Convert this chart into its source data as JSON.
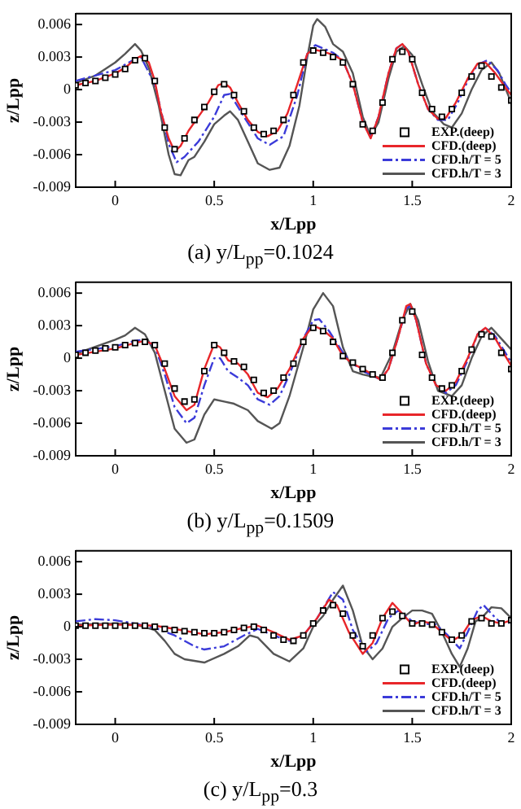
{
  "chart_data": [
    {
      "type": "line",
      "title": "(a) y/L$_{pp}$=0.1024",
      "xlabel": "x/Lpp",
      "ylabel": "z/Lpp",
      "xlim": [
        -0.2,
        2
      ],
      "ylim": [
        -0.009,
        0.007
      ],
      "xticks": [
        0,
        0.5,
        1,
        1.5,
        2
      ],
      "yticks": [
        -0.009,
        -0.006,
        -0.003,
        0,
        0.003,
        0.006
      ],
      "legend": "bottom right",
      "grid": false,
      "series": [
        {
          "name": "EXP.(deep)",
          "type": "scatter",
          "marker": "square",
          "color": "#000000",
          "x": [
            -0.2,
            -0.15,
            -0.1,
            -0.05,
            0,
            0.05,
            0.1,
            0.15,
            0.2,
            0.25,
            0.3,
            0.35,
            0.4,
            0.45,
            0.5,
            0.55,
            0.6,
            0.65,
            0.7,
            0.75,
            0.8,
            0.85,
            0.9,
            0.95,
            1.0,
            1.05,
            1.1,
            1.15,
            1.2,
            1.25,
            1.3,
            1.35,
            1.4,
            1.45,
            1.5,
            1.55,
            1.6,
            1.65,
            1.7,
            1.75,
            1.8,
            1.85,
            1.9,
            1.95,
            2.0
          ],
          "values": [
            0.0004,
            0.0006,
            0.0008,
            0.0011,
            0.0014,
            0.0019,
            0.0027,
            0.0029,
            0.0008,
            -0.0035,
            -0.0055,
            -0.0045,
            -0.0028,
            -0.0016,
            -0.0002,
            0.0005,
            -0.0005,
            -0.002,
            -0.0035,
            -0.0041,
            -0.0038,
            -0.0028,
            -0.0005,
            0.0025,
            0.0036,
            0.0034,
            0.003,
            0.0025,
            0.0005,
            -0.0032,
            -0.0038,
            -0.0012,
            0.0028,
            0.0035,
            0.0028,
            -0.0003,
            -0.0018,
            -0.0025,
            -0.0018,
            -0.0003,
            0.0012,
            0.0022,
            0.0012,
            0.0002,
            -0.001
          ]
        },
        {
          "name": "CFD.(deep)",
          "type": "line",
          "marker": "none",
          "line_style": "solid",
          "color": "#e8262a",
          "x": [
            -0.2,
            -0.1,
            0,
            0.05,
            0.1,
            0.13,
            0.17,
            0.2,
            0.23,
            0.27,
            0.3,
            0.33,
            0.37,
            0.42,
            0.47,
            0.52,
            0.55,
            0.58,
            0.62,
            0.67,
            0.72,
            0.77,
            0.82,
            0.87,
            0.92,
            0.97,
            1.0,
            1.05,
            1.1,
            1.15,
            1.2,
            1.25,
            1.29,
            1.33,
            1.38,
            1.42,
            1.45,
            1.48,
            1.53,
            1.58,
            1.63,
            1.67,
            1.72,
            1.78,
            1.83,
            1.87,
            1.92,
            1.97,
            2.0
          ],
          "values": [
            0.0004,
            0.0008,
            0.0015,
            0.002,
            0.0028,
            0.0031,
            0.0025,
            0.0008,
            -0.002,
            -0.0045,
            -0.0057,
            -0.0052,
            -0.0038,
            -0.0025,
            -0.0012,
            0.0004,
            0.0006,
            0.0002,
            -0.0012,
            -0.0028,
            -0.0039,
            -0.0043,
            -0.0038,
            -0.0022,
            0.0005,
            0.0033,
            0.0037,
            0.0035,
            0.0032,
            0.0027,
            0.0005,
            -0.003,
            -0.0045,
            -0.0025,
            0.0015,
            0.0038,
            0.0042,
            0.0035,
            0.0005,
            -0.0018,
            -0.0027,
            -0.0026,
            -0.0012,
            0.001,
            0.0024,
            0.0025,
            0.0015,
            0.0002,
            -0.0005
          ]
        },
        {
          "name": "CFD.h/T = 5",
          "type": "line",
          "marker": "none",
          "line_style": "dashed",
          "color": "#3b3bd9",
          "x": [
            -0.2,
            0,
            0.1,
            0.13,
            0.2,
            0.27,
            0.31,
            0.35,
            0.42,
            0.5,
            0.55,
            0.58,
            0.65,
            0.72,
            0.78,
            0.85,
            0.92,
            0.97,
            1.01,
            1.05,
            1.1,
            1.15,
            1.2,
            1.25,
            1.29,
            1.33,
            1.38,
            1.42,
            1.45,
            1.48,
            1.53,
            1.58,
            1.63,
            1.68,
            1.73,
            1.78,
            1.83,
            1.88,
            1.93,
            1.97,
            2.0
          ],
          "values": [
            0.0008,
            0.0018,
            0.0028,
            0.003,
            0.0005,
            -0.005,
            -0.0067,
            -0.0062,
            -0.0048,
            -0.0025,
            -0.0005,
            -0.0004,
            -0.0025,
            -0.0045,
            -0.0051,
            -0.0043,
            -0.0005,
            0.0033,
            0.0041,
            0.0038,
            0.0034,
            0.0027,
            0.0005,
            -0.003,
            -0.0044,
            -0.0025,
            0.0015,
            0.0038,
            0.0042,
            0.0035,
            0.0005,
            -0.0018,
            -0.0028,
            -0.0028,
            -0.0012,
            0.0008,
            0.0023,
            0.0027,
            0.0018,
            0.0005,
            -0.0003
          ]
        },
        {
          "name": "CFD.h/T = 3",
          "type": "line",
          "marker": "none",
          "line_style": "solid",
          "color": "#555555",
          "x": [
            -0.2,
            -0.1,
            0,
            0.05,
            0.1,
            0.13,
            0.17,
            0.22,
            0.27,
            0.3,
            0.33,
            0.37,
            0.4,
            0.45,
            0.5,
            0.55,
            0.58,
            0.62,
            0.67,
            0.72,
            0.78,
            0.83,
            0.88,
            0.93,
            0.97,
            1.0,
            1.02,
            1.06,
            1.1,
            1.15,
            1.2,
            1.25,
            1.29,
            1.33,
            1.38,
            1.42,
            1.46,
            1.5,
            1.55,
            1.6,
            1.66,
            1.7,
            1.75,
            1.8,
            1.85,
            1.9,
            1.94,
            2.0
          ],
          "values": [
            0.0006,
            0.0013,
            0.0025,
            0.0033,
            0.0042,
            0.0036,
            0.002,
            -0.0015,
            -0.006,
            -0.0078,
            -0.0079,
            -0.0065,
            -0.0062,
            -0.0048,
            -0.0032,
            -0.0024,
            -0.002,
            -0.0028,
            -0.0048,
            -0.0068,
            -0.0074,
            -0.0072,
            -0.0052,
            -0.0015,
            0.003,
            0.0059,
            0.0065,
            0.0058,
            0.0042,
            0.0035,
            0.0015,
            -0.0025,
            -0.0043,
            -0.003,
            0.001,
            0.0035,
            0.004,
            0.0032,
            0.0005,
            -0.002,
            -0.0032,
            -0.0035,
            -0.0022,
            0,
            0.0018,
            0.0025,
            0.0015,
            -0.0012
          ]
        }
      ]
    },
    {
      "type": "line",
      "title": "(b) y/L$_{pp}$=0.1509",
      "xlabel": "x/Lpp",
      "ylabel": "z/Lpp",
      "xlim": [
        -0.2,
        2
      ],
      "ylim": [
        -0.009,
        0.007
      ],
      "xticks": [
        0,
        0.5,
        1,
        1.5,
        2
      ],
      "yticks": [
        -0.009,
        -0.006,
        -0.003,
        0,
        0.003,
        0.006
      ],
      "legend": "bottom right",
      "grid": false,
      "series": [
        {
          "name": "EXP.(deep)",
          "type": "scatter",
          "marker": "square",
          "color": "#000000",
          "x": [
            -0.2,
            -0.15,
            -0.1,
            -0.05,
            0,
            0.05,
            0.1,
            0.15,
            0.2,
            0.25,
            0.3,
            0.35,
            0.4,
            0.45,
            0.5,
            0.55,
            0.6,
            0.65,
            0.7,
            0.75,
            0.8,
            0.85,
            0.9,
            0.95,
            1.0,
            1.05,
            1.1,
            1.15,
            1.2,
            1.25,
            1.3,
            1.35,
            1.4,
            1.45,
            1.5,
            1.55,
            1.6,
            1.65,
            1.7,
            1.75,
            1.8,
            1.85,
            1.9,
            1.95,
            2.0
          ],
          "values": [
            0.0003,
            0.0005,
            0.0007,
            0.0009,
            0.001,
            0.0012,
            0.0014,
            0.0015,
            0.0012,
            -0.0005,
            -0.0028,
            -0.004,
            -0.0038,
            -0.0012,
            0.0012,
            0.0005,
            -0.0003,
            -0.0008,
            -0.002,
            -0.0032,
            -0.003,
            -0.0018,
            -0.0005,
            0.0015,
            0.0028,
            0.0025,
            0.0015,
            0.0002,
            -0.0004,
            -0.001,
            -0.0015,
            -0.0018,
            0.0005,
            0.0035,
            0.0043,
            0.0003,
            -0.0018,
            -0.0028,
            -0.0025,
            -0.0012,
            0.0008,
            0.0022,
            0.002,
            0.0005,
            -0.001
          ]
        },
        {
          "name": "CFD.(deep)",
          "type": "line",
          "marker": "none",
          "line_style": "solid",
          "color": "#e8262a",
          "x": [
            -0.2,
            0,
            0.1,
            0.15,
            0.2,
            0.25,
            0.3,
            0.36,
            0.4,
            0.45,
            0.5,
            0.53,
            0.57,
            0.62,
            0.67,
            0.72,
            0.77,
            0.82,
            0.88,
            0.95,
            1.0,
            1.05,
            1.1,
            1.15,
            1.2,
            1.25,
            1.3,
            1.34,
            1.38,
            1.43,
            1.47,
            1.49,
            1.52,
            1.57,
            1.62,
            1.67,
            1.72,
            1.78,
            1.83,
            1.87,
            1.92,
            1.97,
            2.0
          ],
          "values": [
            0.0003,
            0.0009,
            0.0014,
            0.0016,
            0.0012,
            -0.001,
            -0.0035,
            -0.0048,
            -0.0043,
            -0.001,
            0.0013,
            0.001,
            -0.0002,
            -0.0005,
            -0.0015,
            -0.0032,
            -0.0036,
            -0.0028,
            -0.001,
            0.0018,
            0.003,
            0.0026,
            0.0018,
            0.0002,
            -0.0005,
            -0.001,
            -0.0015,
            -0.002,
            -0.001,
            0.002,
            0.0048,
            0.005,
            0.0035,
            -0.0005,
            -0.0025,
            -0.003,
            -0.0022,
            0,
            0.0022,
            0.0028,
            0.0018,
            0.0002,
            -0.0007
          ]
        },
        {
          "name": "CFD.h/T = 5",
          "type": "line",
          "marker": "none",
          "line_style": "dashed",
          "color": "#3b3bd9",
          "x": [
            -0.2,
            0,
            0.1,
            0.15,
            0.2,
            0.25,
            0.3,
            0.36,
            0.4,
            0.45,
            0.5,
            0.53,
            0.57,
            0.62,
            0.67,
            0.72,
            0.78,
            0.83,
            0.88,
            0.95,
            1.0,
            1.03,
            1.08,
            1.15,
            1.2,
            1.25,
            1.3,
            1.34,
            1.38,
            1.43,
            1.47,
            1.49,
            1.52,
            1.57,
            1.62,
            1.67,
            1.72,
            1.78,
            1.83,
            1.87,
            1.92,
            1.97,
            2.0
          ],
          "values": [
            0.0006,
            0.0011,
            0.0016,
            0.0017,
            0.0011,
            -0.0015,
            -0.0045,
            -0.006,
            -0.0055,
            -0.0025,
            0,
            0,
            -0.0012,
            -0.0018,
            -0.0025,
            -0.0038,
            -0.0043,
            -0.0035,
            -0.0015,
            0.0018,
            0.0035,
            0.0036,
            0.0025,
            0.0005,
            -0.0005,
            -0.0012,
            -0.0016,
            -0.002,
            -0.001,
            0.002,
            0.0046,
            0.0048,
            0.0035,
            -0.0005,
            -0.0025,
            -0.0032,
            -0.0025,
            -0.0002,
            0.0022,
            0.0028,
            0.002,
            0.0005,
            -0.0004
          ]
        },
        {
          "name": "CFD.h/T = 3",
          "type": "line",
          "marker": "none",
          "line_style": "solid",
          "color": "#555555",
          "x": [
            -0.2,
            0,
            0.05,
            0.1,
            0.15,
            0.2,
            0.25,
            0.3,
            0.36,
            0.4,
            0.45,
            0.5,
            0.55,
            0.6,
            0.67,
            0.72,
            0.79,
            0.83,
            0.88,
            0.95,
            1.0,
            1.05,
            1.1,
            1.15,
            1.2,
            1.25,
            1.3,
            1.34,
            1.4,
            1.45,
            1.49,
            1.53,
            1.58,
            1.63,
            1.7,
            1.75,
            1.8,
            1.85,
            1.9,
            1.95,
            2.0
          ],
          "values": [
            0.0004,
            0.0017,
            0.0021,
            0.0028,
            0.0022,
            0.0005,
            -0.003,
            -0.0065,
            -0.0078,
            -0.0075,
            -0.0052,
            -0.0038,
            -0.004,
            -0.0042,
            -0.0048,
            -0.0058,
            -0.0065,
            -0.006,
            -0.0035,
            0.001,
            0.0045,
            0.006,
            0.0048,
            0.001,
            -0.0012,
            -0.0015,
            -0.0017,
            -0.0018,
            0.0005,
            0.0035,
            0.005,
            0.0035,
            -0.0003,
            -0.003,
            -0.0035,
            -0.0025,
            0,
            0.002,
            0.0028,
            0.0018,
            0.0008
          ]
        }
      ]
    },
    {
      "type": "line",
      "title": "(c) y/L$_{pp}$=0.3",
      "xlabel": "x/Lpp",
      "ylabel": "z/Lpp",
      "xlim": [
        -0.2,
        2
      ],
      "ylim": [
        -0.009,
        0.007
      ],
      "xticks": [
        0,
        0.5,
        1,
        1.5,
        2
      ],
      "yticks": [
        -0.009,
        -0.006,
        -0.003,
        0,
        0.003,
        0.006
      ],
      "legend": "bottom right",
      "grid": false,
      "series": [
        {
          "name": "EXP.(deep)",
          "type": "scatter",
          "marker": "square",
          "color": "#000000",
          "x": [
            -0.2,
            -0.15,
            -0.1,
            -0.05,
            0,
            0.05,
            0.1,
            0.15,
            0.2,
            0.25,
            0.3,
            0.35,
            0.4,
            0.45,
            0.5,
            0.55,
            0.6,
            0.65,
            0.7,
            0.75,
            0.8,
            0.85,
            0.9,
            0.95,
            1.0,
            1.05,
            1.1,
            1.15,
            1.2,
            1.25,
            1.3,
            1.35,
            1.4,
            1.45,
            1.5,
            1.55,
            1.6,
            1.65,
            1.7,
            1.75,
            1.8,
            1.85,
            1.9,
            1.95,
            2.0
          ],
          "values": [
            0.0001,
            0.0001,
            0.0001,
            0.0001,
            0.0001,
            0.0001,
            0.0001,
            0.0001,
            0,
            -0.0002,
            -0.0003,
            -0.0004,
            -0.0005,
            -0.0006,
            -0.0006,
            -0.0005,
            -0.0003,
            -0.0001,
            0,
            -0.0003,
            -0.0008,
            -0.0012,
            -0.0013,
            -0.0008,
            0.0003,
            0.0015,
            0.002,
            0.0012,
            -0.0008,
            -0.0018,
            -0.0008,
            0.0008,
            0.0014,
            0.001,
            0.0003,
            0.0003,
            0.0002,
            -0.0005,
            -0.0012,
            -0.0008,
            0.0005,
            0.0008,
            0.0003,
            0.0003,
            0.0006
          ]
        },
        {
          "name": "CFD.(deep)",
          "type": "line",
          "marker": "none",
          "line_style": "solid",
          "color": "#e8262a",
          "x": [
            -0.2,
            0,
            0.2,
            0.3,
            0.45,
            0.55,
            0.65,
            0.72,
            0.8,
            0.88,
            0.95,
            1.02,
            1.08,
            1.12,
            1.18,
            1.25,
            1.3,
            1.35,
            1.4,
            1.45,
            1.5,
            1.55,
            1.6,
            1.65,
            1.7,
            1.75,
            1.8,
            1.85,
            1.9,
            1.95,
            2.0
          ],
          "values": [
            0.0001,
            0.0002,
            0.0001,
            -0.0002,
            -0.0007,
            -0.0005,
            -0.0001,
            0.0001,
            -0.0005,
            -0.0012,
            -0.0008,
            0.0008,
            0.0025,
            0.002,
            -0.0005,
            -0.0025,
            -0.0015,
            0.0008,
            0.0022,
            0.0012,
            0.0002,
            0.0005,
            0.0003,
            -0.0005,
            -0.0013,
            -0.0008,
            0.0006,
            0.001,
            0.0005,
            0.0003,
            0.0006
          ]
        },
        {
          "name": "CFD.h/T = 5",
          "type": "line",
          "marker": "none",
          "line_style": "dashed",
          "color": "#3b3bd9",
          "x": [
            -0.2,
            -0.1,
            0,
            0.1,
            0.2,
            0.3,
            0.4,
            0.45,
            0.55,
            0.65,
            0.72,
            0.8,
            0.88,
            0.95,
            1.02,
            1.1,
            1.15,
            1.2,
            1.27,
            1.32,
            1.38,
            1.43,
            1.5,
            1.55,
            1.62,
            1.68,
            1.74,
            1.78,
            1.83,
            1.86,
            1.9,
            1.95,
            2.0
          ],
          "values": [
            0.0005,
            0.0007,
            0.0006,
            0.0003,
            -0.0001,
            -0.0008,
            -0.0018,
            -0.0021,
            -0.0018,
            -0.0008,
            -0.0002,
            -0.0008,
            -0.0013,
            -0.0008,
            0.0008,
            0.0032,
            0.0025,
            -0.0003,
            -0.0023,
            -0.0015,
            0.0008,
            0.0015,
            0.0005,
            0.0003,
            0.0002,
            -0.0008,
            -0.002,
            -0.0005,
            0.0015,
            0.002,
            0.0012,
            0.0003,
            0.0004
          ]
        },
        {
          "name": "CFD.h/T = 3",
          "type": "line",
          "marker": "none",
          "line_style": "solid",
          "color": "#555555",
          "x": [
            -0.2,
            0,
            0.1,
            0.2,
            0.25,
            0.3,
            0.35,
            0.45,
            0.55,
            0.62,
            0.68,
            0.72,
            0.8,
            0.88,
            0.95,
            1.0,
            1.05,
            1.1,
            1.15,
            1.2,
            1.25,
            1.3,
            1.35,
            1.4,
            1.45,
            1.5,
            1.55,
            1.6,
            1.65,
            1.7,
            1.74,
            1.78,
            1.82,
            1.85,
            1.9,
            1.95,
            2.0
          ],
          "values": [
            0.0002,
            0.0003,
            0.0002,
            -0.0003,
            -0.0013,
            -0.0025,
            -0.003,
            -0.0033,
            -0.0025,
            -0.0018,
            -0.0008,
            -0.001,
            -0.0025,
            -0.0032,
            -0.002,
            0,
            0.001,
            0.0025,
            0.0038,
            0.0015,
            -0.0018,
            -0.003,
            -0.002,
            0,
            0.0008,
            0.0015,
            0.0015,
            0.0012,
            -0.0005,
            -0.0025,
            -0.0037,
            -0.002,
            0.0005,
            0.0008,
            0.0018,
            0.0017,
            0.0008
          ]
        }
      ]
    }
  ]
}
